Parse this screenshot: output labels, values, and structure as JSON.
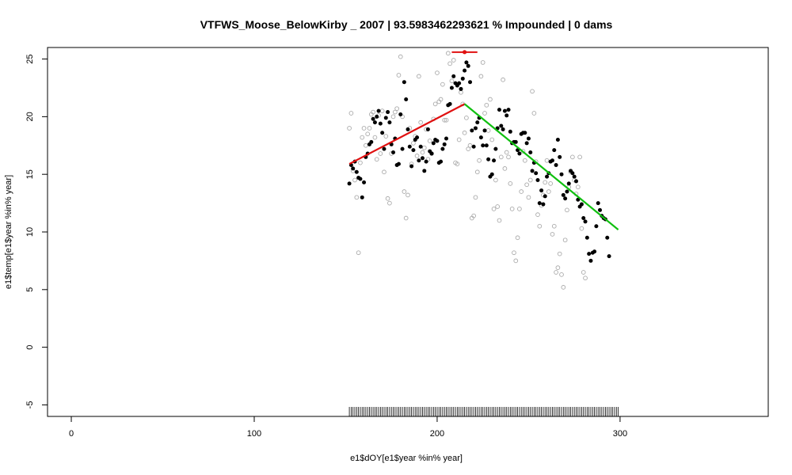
{
  "chart_data": {
    "type": "scatter",
    "title": "VTFWS_Moose_BelowKirby _ 2007   |   93.5983462293621  % Impounded |  0  dams",
    "xlabel": "e1$dOY[e1$year %in% year]",
    "ylabel": "e1$temp[e1$year %in% year]",
    "xlim": [
      -13,
      381
    ],
    "ylim": [
      -6,
      26
    ],
    "x_ticks": [
      0,
      100,
      200,
      300
    ],
    "y_ticks": [
      -5,
      0,
      5,
      10,
      15,
      20,
      25
    ],
    "grid": false,
    "legend": "none",
    "series": [
      {
        "style": "filled-black",
        "points": [
          [
            152,
            14.2
          ],
          [
            153,
            15.8
          ],
          [
            154,
            15.5
          ],
          [
            155,
            16.1
          ],
          [
            156,
            15.2
          ],
          [
            157,
            14.7
          ],
          [
            158,
            14.6
          ],
          [
            159,
            13
          ],
          [
            160,
            14.3
          ],
          [
            161,
            16.5
          ],
          [
            162,
            16.8
          ],
          [
            163,
            17.6
          ],
          [
            164,
            17.8
          ],
          [
            165,
            19.8
          ],
          [
            166,
            19.5
          ],
          [
            167,
            20
          ],
          [
            168,
            20.5
          ],
          [
            169,
            19.4
          ],
          [
            170,
            18.6
          ],
          [
            171,
            17.2
          ],
          [
            172,
            19.9
          ],
          [
            173,
            20.4
          ],
          [
            174,
            19.5
          ],
          [
            175,
            17.6
          ],
          [
            176,
            16.9
          ],
          [
            177,
            18.1
          ],
          [
            178,
            15.8
          ],
          [
            179,
            15.9
          ],
          [
            180,
            20.2
          ],
          [
            181,
            17.2
          ],
          [
            182,
            23
          ],
          [
            183,
            21.5
          ],
          [
            184,
            18.9
          ],
          [
            185,
            17.4
          ],
          [
            186,
            15.7
          ],
          [
            187,
            17.1
          ],
          [
            188,
            18
          ],
          [
            189,
            18.2
          ],
          [
            190,
            16.2
          ],
          [
            191,
            17.4
          ],
          [
            192,
            16.4
          ],
          [
            193,
            15.3
          ],
          [
            194,
            16.1
          ],
          [
            195,
            18.9
          ],
          [
            196,
            17
          ],
          [
            197,
            16.8
          ],
          [
            198,
            17.7
          ],
          [
            199,
            18
          ],
          [
            200,
            17.9
          ],
          [
            201,
            16
          ],
          [
            202,
            16.1
          ],
          [
            203,
            17.2
          ],
          [
            204,
            17.6
          ],
          [
            205,
            18.1
          ],
          [
            206,
            21
          ],
          [
            207,
            21.1
          ],
          [
            208,
            22.5
          ],
          [
            209,
            23.5
          ],
          [
            210,
            22.9
          ],
          [
            211,
            22.7
          ],
          [
            212,
            22.9
          ],
          [
            213,
            22.4
          ],
          [
            214,
            23.3
          ],
          [
            215,
            24
          ],
          [
            216,
            24.7
          ],
          [
            217,
            24.4
          ],
          [
            218,
            23
          ],
          [
            219,
            18.8
          ],
          [
            220,
            17.4
          ],
          [
            221,
            19
          ],
          [
            222,
            19.5
          ],
          [
            223,
            19.9
          ],
          [
            224,
            18.2
          ],
          [
            225,
            17.5
          ],
          [
            226,
            18.8
          ],
          [
            227,
            17.5
          ],
          [
            228,
            16.3
          ],
          [
            229,
            14.8
          ],
          [
            230,
            15
          ],
          [
            231,
            16.2
          ],
          [
            232,
            17.2
          ],
          [
            233,
            19
          ],
          [
            234,
            20.6
          ],
          [
            235,
            19.2
          ],
          [
            236,
            18.9
          ],
          [
            237,
            20.5
          ],
          [
            238,
            20.1
          ],
          [
            239,
            20.6
          ],
          [
            240,
            18.7
          ],
          [
            241,
            17.7
          ],
          [
            242,
            17.8
          ],
          [
            243,
            17.8
          ],
          [
            244,
            17.1
          ],
          [
            245,
            16.8
          ],
          [
            246,
            18.5
          ],
          [
            247,
            18.6
          ],
          [
            248,
            18.6
          ],
          [
            249,
            17.7
          ],
          [
            250,
            18.1
          ],
          [
            251,
            16.9
          ],
          [
            252,
            15.3
          ],
          [
            253,
            16
          ],
          [
            254,
            15.1
          ],
          [
            255,
            14.5
          ],
          [
            256,
            12.5
          ],
          [
            257,
            13.6
          ],
          [
            258,
            12.4
          ],
          [
            259,
            13.1
          ],
          [
            260,
            14.8
          ],
          [
            261,
            15.1
          ],
          [
            262,
            16.1
          ],
          [
            263,
            16.2
          ],
          [
            264,
            17.1
          ],
          [
            265,
            15.8
          ],
          [
            266,
            18
          ],
          [
            267,
            16.5
          ],
          [
            268,
            15
          ],
          [
            269,
            13.2
          ],
          [
            270,
            12.9
          ],
          [
            271,
            13.5
          ],
          [
            272,
            14.2
          ],
          [
            273,
            15.3
          ],
          [
            274,
            15.1
          ],
          [
            275,
            14.8
          ],
          [
            276,
            14.4
          ],
          [
            277,
            12.8
          ],
          [
            278,
            12.2
          ],
          [
            279,
            12.4
          ],
          [
            280,
            11.2
          ],
          [
            281,
            10.9
          ],
          [
            282,
            9.5
          ],
          [
            283,
            8.1
          ],
          [
            284,
            7.5
          ],
          [
            285,
            8.2
          ],
          [
            286,
            8.3
          ],
          [
            287,
            10.5
          ],
          [
            288,
            12.5
          ],
          [
            289,
            11.9
          ],
          [
            290,
            11.4
          ],
          [
            291,
            11.2
          ],
          [
            292,
            11.1
          ],
          [
            293,
            9.5
          ],
          [
            294,
            7.9
          ]
        ]
      },
      {
        "style": "open-gray",
        "points": [
          [
            152,
            19
          ],
          [
            153,
            20.3
          ],
          [
            154,
            15.3
          ],
          [
            155,
            14.5
          ],
          [
            156,
            13
          ],
          [
            157,
            8.2
          ],
          [
            158,
            16
          ],
          [
            159,
            18.2
          ],
          [
            160,
            19
          ],
          [
            161,
            17.5
          ],
          [
            162,
            18.5
          ],
          [
            163,
            19
          ],
          [
            164,
            20.2
          ],
          [
            165,
            20.4
          ],
          [
            166,
            18.2
          ],
          [
            167,
            16.3
          ],
          [
            168,
            20.1
          ],
          [
            169,
            16.8
          ],
          [
            170,
            20.5
          ],
          [
            171,
            15.2
          ],
          [
            172,
            18.3
          ],
          [
            173,
            12.9
          ],
          [
            174,
            12.5
          ],
          [
            175,
            16.8
          ],
          [
            176,
            20
          ],
          [
            177,
            20.4
          ],
          [
            178,
            20.7
          ],
          [
            179,
            23.6
          ],
          [
            180,
            25.2
          ],
          [
            181,
            20
          ],
          [
            182,
            13.5
          ],
          [
            183,
            11.2
          ],
          [
            184,
            13.2
          ],
          [
            185,
            19
          ],
          [
            186,
            15.9
          ],
          [
            187,
            17.7
          ],
          [
            188,
            18.3
          ],
          [
            189,
            16.6
          ],
          [
            190,
            23.5
          ],
          [
            191,
            19.5
          ],
          [
            192,
            16.9
          ],
          [
            193,
            17.3
          ],
          [
            194,
            18.9
          ],
          [
            195,
            16.3
          ],
          [
            196,
            17.9
          ],
          [
            197,
            16.8
          ],
          [
            198,
            19.8
          ],
          [
            199,
            21.1
          ],
          [
            200,
            23.8
          ],
          [
            201,
            21.3
          ],
          [
            202,
            21.5
          ],
          [
            203,
            22.8
          ],
          [
            204,
            19.7
          ],
          [
            205,
            19.7
          ],
          [
            206,
            25.5
          ],
          [
            207,
            24.6
          ],
          [
            208,
            23.1
          ],
          [
            209,
            24.9
          ],
          [
            210,
            16
          ],
          [
            211,
            15.9
          ],
          [
            212,
            18
          ],
          [
            213,
            22.1
          ],
          [
            214,
            21.1
          ],
          [
            215,
            18.6
          ],
          [
            216,
            19.9
          ],
          [
            217,
            17.2
          ],
          [
            218,
            17.5
          ],
          [
            219,
            11.2
          ],
          [
            220,
            11.4
          ],
          [
            221,
            13
          ],
          [
            222,
            15.2
          ],
          [
            223,
            16.2
          ],
          [
            224,
            23.5
          ],
          [
            225,
            24.7
          ],
          [
            226,
            20.3
          ],
          [
            227,
            21
          ],
          [
            228,
            18.8
          ],
          [
            229,
            21.5
          ],
          [
            230,
            18
          ],
          [
            231,
            12
          ],
          [
            232,
            14.5
          ],
          [
            233,
            12.2
          ],
          [
            234,
            11
          ],
          [
            235,
            16.5
          ],
          [
            236,
            23.2
          ],
          [
            237,
            15.5
          ],
          [
            238,
            16.9
          ],
          [
            239,
            16.5
          ],
          [
            240,
            14.2
          ],
          [
            241,
            12
          ],
          [
            242,
            8.2
          ],
          [
            243,
            7.5
          ],
          [
            244,
            9.5
          ],
          [
            245,
            12
          ],
          [
            246,
            13.5
          ],
          [
            247,
            17
          ],
          [
            248,
            16.2
          ],
          [
            249,
            14.1
          ],
          [
            250,
            13
          ],
          [
            251,
            14.5
          ],
          [
            252,
            22.2
          ],
          [
            253,
            20.3
          ],
          [
            254,
            16.1
          ],
          [
            255,
            11.5
          ],
          [
            256,
            10.5
          ],
          [
            257,
            12.3
          ],
          [
            258,
            13.2
          ],
          [
            259,
            14.3
          ],
          [
            260,
            16.2
          ],
          [
            261,
            13.5
          ],
          [
            262,
            14.2
          ],
          [
            263,
            9.8
          ],
          [
            264,
            10.5
          ],
          [
            265,
            6.5
          ],
          [
            266,
            6.9
          ],
          [
            267,
            8.1
          ],
          [
            268,
            6.3
          ],
          [
            269,
            5.2
          ],
          [
            270,
            9.3
          ],
          [
            271,
            11.9
          ],
          [
            272,
            13.9
          ],
          [
            273,
            15.2
          ],
          [
            274,
            16.5
          ],
          [
            275,
            14.5
          ],
          [
            276,
            13.3
          ],
          [
            277,
            13.9
          ],
          [
            278,
            16.5
          ],
          [
            279,
            10.3
          ],
          [
            280,
            6.5
          ],
          [
            281,
            6
          ]
        ]
      }
    ],
    "fit_lines": [
      {
        "color": "#e01010",
        "points": [
          [
            152,
            15.9
          ],
          [
            215,
            21.1
          ]
        ]
      },
      {
        "color": "#10c010",
        "points": [
          [
            215,
            21.1
          ],
          [
            299,
            10.2
          ]
        ]
      }
    ],
    "peak_interval": {
      "color": "#e01010",
      "x_start": 208,
      "x_end": 222,
      "x_center": 215,
      "y": 25.6
    },
    "rug_x_range": [
      152,
      299
    ],
    "colors": {
      "filled": "#000000",
      "open": "#aaaaaa",
      "rug": "#000000"
    }
  }
}
